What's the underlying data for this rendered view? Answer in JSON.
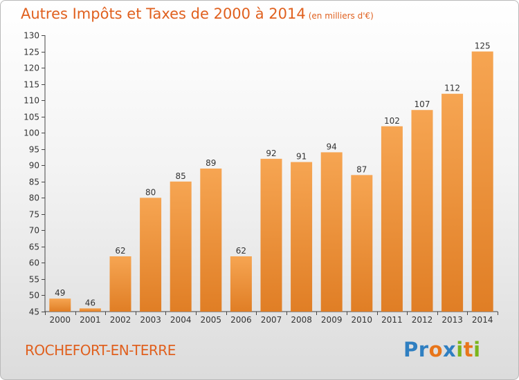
{
  "header": {
    "title": "Autres Impôts et Taxes de 2000 à 2014",
    "unit": "(en milliers d'€)"
  },
  "footer": {
    "commune": "ROCHEFORT-EN-TERRE",
    "logo_letters": [
      "P",
      "r",
      "o",
      "x",
      "i",
      "t",
      "i"
    ],
    "logo_colors": [
      "#2f7fc1",
      "#2f7fc1",
      "#e8751a",
      "#2f7fc1",
      "#7ab51d",
      "#e8751a",
      "#7ab51d"
    ]
  },
  "colors": {
    "title": "#e0601e",
    "bar_light": "#f6a552",
    "bar_dark": "#e07e25",
    "axis": "#444444"
  },
  "chart_data": {
    "type": "bar",
    "title": "Autres Impôts et Taxes de 2000 à 2014",
    "subtitle": "(en milliers d'€)",
    "categories": [
      "2000",
      "2001",
      "2002",
      "2003",
      "2004",
      "2005",
      "2006",
      "2007",
      "2008",
      "2009",
      "2010",
      "2011",
      "2012",
      "2013",
      "2014"
    ],
    "values": [
      49,
      46,
      62,
      80,
      85,
      89,
      62,
      92,
      91,
      94,
      87,
      102,
      107,
      112,
      125
    ],
    "ylim": [
      45,
      130
    ],
    "yticks": [
      45,
      50,
      55,
      60,
      65,
      70,
      75,
      80,
      85,
      90,
      95,
      100,
      105,
      110,
      115,
      120,
      125,
      130
    ],
    "grid": false,
    "data_labels": true
  }
}
